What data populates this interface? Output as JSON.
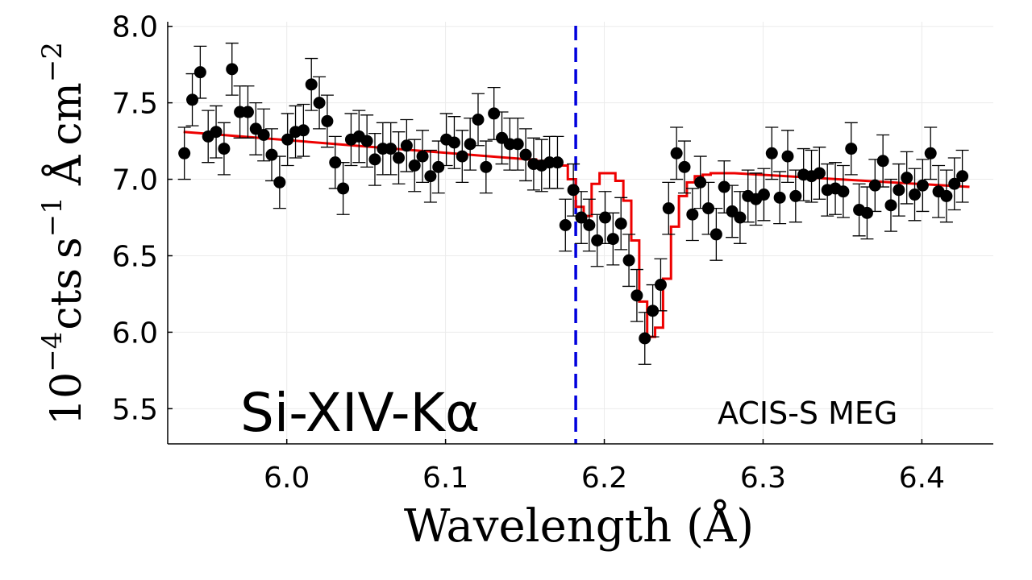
{
  "chart_data": {
    "type": "scatter",
    "title": "",
    "xlabel": "Wavelength (Å)",
    "ylabel": "10^-4 cts s^-1 Å cm^-2",
    "ylabel_parts": {
      "factor": "10",
      "factor_exp": "−4",
      "cts": "cts",
      "s": "s",
      "s_exp": "−1",
      "angstrom": "Å",
      "cm": "cm",
      "cm_exp": "−2"
    },
    "xlim": [
      5.925,
      6.445
    ],
    "ylim": [
      5.27,
      8.03
    ],
    "xticks": [
      6.0,
      6.1,
      6.2,
      6.3,
      6.4
    ],
    "xtick_labels": [
      "6.0",
      "6.1",
      "6.2",
      "6.3",
      "6.4"
    ],
    "yticks": [
      5.5,
      6.0,
      6.5,
      7.0,
      7.5,
      8.0
    ],
    "ytick_labels": [
      "5.5",
      "6.0",
      "6.5",
      "7.0",
      "7.5",
      "8.0"
    ],
    "grid": true,
    "annotations": {
      "line_label": "Si-XIV-Kα",
      "instrument": "ACIS-S MEG"
    },
    "vline": {
      "x": 6.182,
      "color": "#0000dd",
      "style": "dashed"
    },
    "colors": {
      "data": "#000000",
      "model": "#ee0000",
      "vline": "#0000dd",
      "grid": "#ebebeb"
    },
    "series": [
      {
        "name": "data",
        "type": "scatter",
        "error": 0.17,
        "x": [
          5.9355,
          5.9405,
          5.9455,
          5.9505,
          5.9555,
          5.9605,
          5.9655,
          5.9705,
          5.9755,
          5.9805,
          5.9855,
          5.9905,
          5.9955,
          6.0005,
          6.0055,
          6.0105,
          6.0155,
          6.0205,
          6.0255,
          6.0305,
          6.0355,
          6.0405,
          6.0455,
          6.0505,
          6.0555,
          6.0605,
          6.0655,
          6.0705,
          6.0755,
          6.0805,
          6.0855,
          6.0905,
          6.0955,
          6.1005,
          6.1055,
          6.1105,
          6.1155,
          6.1205,
          6.1255,
          6.1305,
          6.1355,
          6.1405,
          6.1455,
          6.1505,
          6.1555,
          6.1605,
          6.1655,
          6.1705,
          6.1755,
          6.1805,
          6.1855,
          6.1905,
          6.1955,
          6.2005,
          6.2055,
          6.2105,
          6.2155,
          6.2205,
          6.2255,
          6.2305,
          6.2355,
          6.2405,
          6.2455,
          6.2505,
          6.2555,
          6.2605,
          6.2655,
          6.2705,
          6.2755,
          6.2805,
          6.2855,
          6.2905,
          6.2955,
          6.3005,
          6.3055,
          6.3105,
          6.3155,
          6.3205,
          6.3255,
          6.3305,
          6.3355,
          6.3405,
          6.3455,
          6.3505,
          6.3555,
          6.3605,
          6.3655,
          6.3705,
          6.3755,
          6.3805,
          6.3855,
          6.3905,
          6.3955,
          6.4005,
          6.4055,
          6.4105,
          6.4155,
          6.4205,
          6.4255
        ],
        "y": [
          7.17,
          7.52,
          7.7,
          7.28,
          7.31,
          7.2,
          7.72,
          7.44,
          7.44,
          7.33,
          7.29,
          7.16,
          6.98,
          7.26,
          7.31,
          7.32,
          7.62,
          7.5,
          7.38,
          7.11,
          6.94,
          7.26,
          7.28,
          7.25,
          7.13,
          7.2,
          7.2,
          7.14,
          7.22,
          7.09,
          7.15,
          7.02,
          7.08,
          7.26,
          7.24,
          7.15,
          7.23,
          7.39,
          7.08,
          7.43,
          7.27,
          7.23,
          7.23,
          7.16,
          7.1,
          7.09,
          7.11,
          7.11,
          6.7,
          6.93,
          6.75,
          6.7,
          6.6,
          6.75,
          6.61,
          6.71,
          6.47,
          6.24,
          5.96,
          6.14,
          6.31,
          6.81,
          7.17,
          7.08,
          6.77,
          6.98,
          6.81,
          6.64,
          6.95,
          6.79,
          6.75,
          6.89,
          6.87,
          6.9,
          7.17,
          6.88,
          7.15,
          6.89,
          7.03,
          7.02,
          7.04,
          6.93,
          6.94,
          6.92,
          7.2,
          6.8,
          6.78,
          6.96,
          7.12,
          6.83,
          6.93,
          7.01,
          6.9,
          6.96,
          7.17,
          6.92,
          6.89,
          6.97,
          7.02
        ]
      },
      {
        "name": "model",
        "type": "step",
        "x": [
          5.935,
          6.152,
          6.157,
          6.162,
          6.167,
          6.172,
          6.177,
          6.182,
          6.187,
          6.192,
          6.197,
          6.202,
          6.207,
          6.212,
          6.217,
          6.222,
          6.227,
          6.232,
          6.237,
          6.242,
          6.247,
          6.252,
          6.257,
          6.262,
          6.267,
          6.272,
          6.277,
          6.282,
          6.43
        ],
        "y": [
          7.31,
          7.13,
          7.12,
          7.11,
          7.1,
          7.09,
          7.0,
          6.82,
          6.76,
          6.97,
          7.04,
          7.04,
          6.99,
          6.86,
          6.6,
          6.2,
          5.97,
          6.03,
          6.35,
          6.69,
          6.89,
          6.98,
          7.02,
          7.03,
          7.04,
          7.04,
          7.04,
          7.04,
          6.95
        ]
      }
    ]
  }
}
